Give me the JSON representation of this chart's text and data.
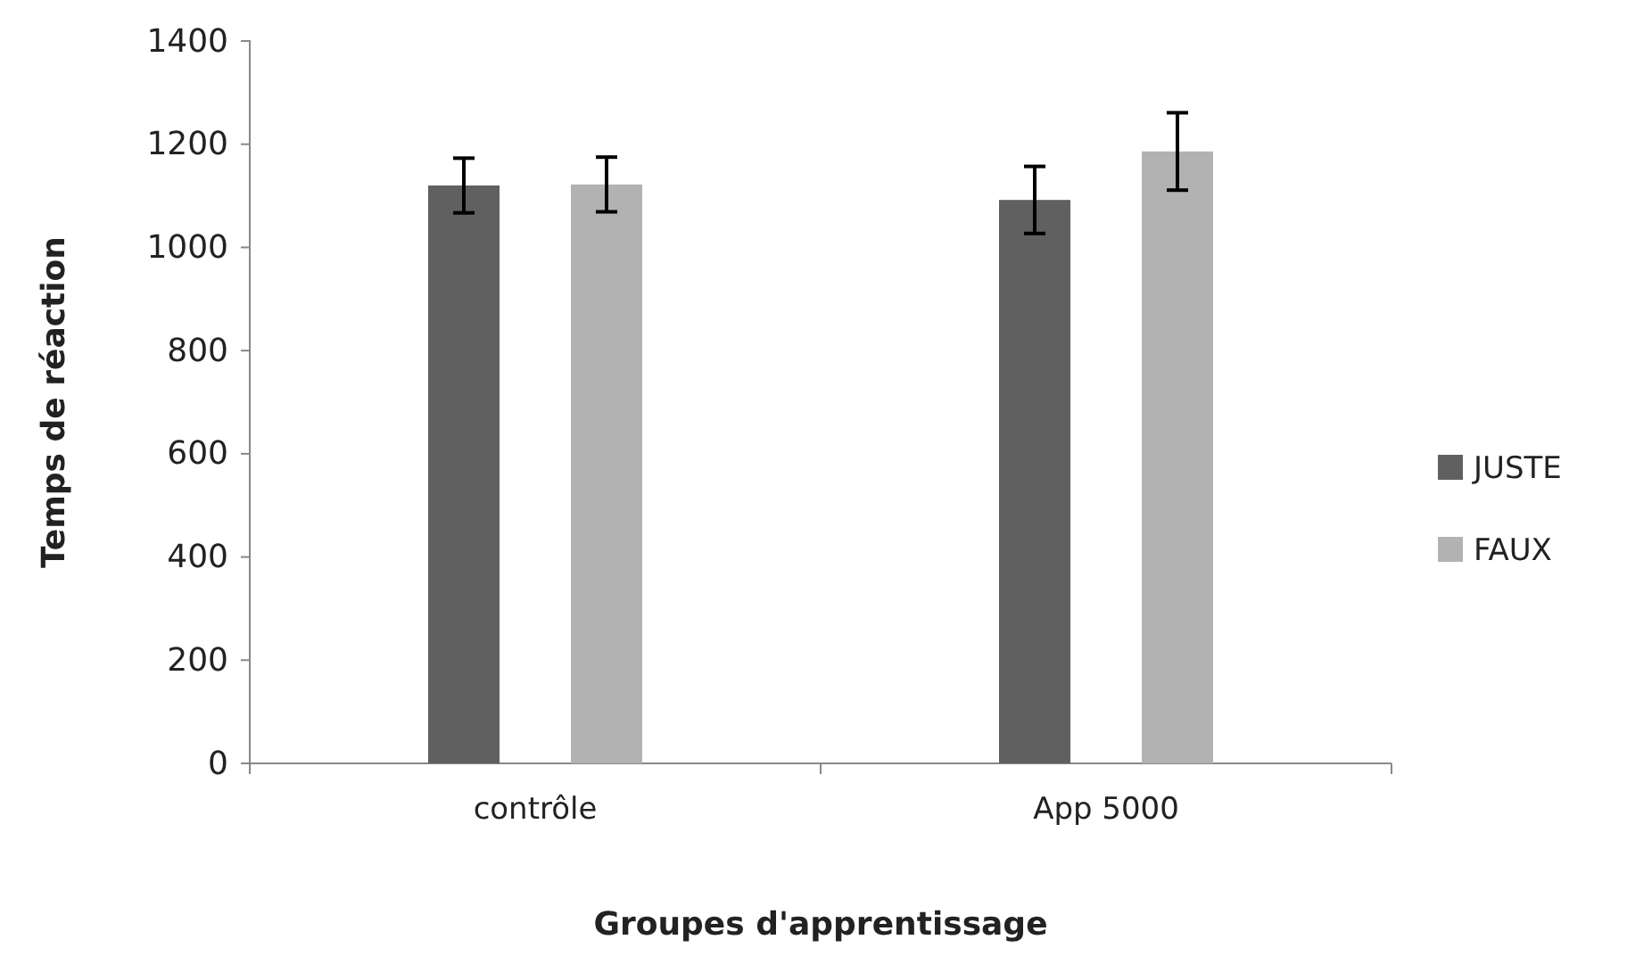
{
  "chart_data": {
    "type": "bar",
    "xlabel": "Groupes d'apprentissage",
    "ylabel": "Temps de réaction",
    "categories": [
      "contrôle",
      "App 5000"
    ],
    "series": [
      {
        "name": "JUSTE",
        "color": "#606060",
        "values": [
          1120,
          1092
        ],
        "errors": [
          53,
          65
        ]
      },
      {
        "name": "FAUX",
        "color": "#b2b2b2",
        "values": [
          1122,
          1186
        ],
        "errors": [
          53,
          75
        ]
      }
    ],
    "ylim": [
      0,
      1400
    ],
    "yticks": [
      0,
      200,
      400,
      600,
      800,
      1000,
      1200,
      1400
    ],
    "grid": false,
    "legend": "right"
  }
}
